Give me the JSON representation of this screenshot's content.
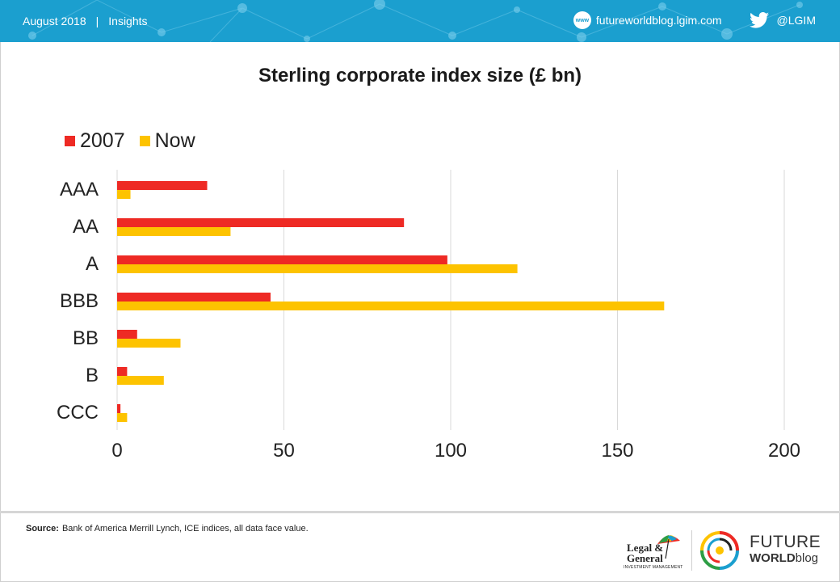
{
  "header": {
    "date": "August 2018",
    "separator": "|",
    "section": "Insights",
    "website": "futureworldblog.lgim.com",
    "www_icon_label": "www",
    "twitter_handle": "@LGIM",
    "icons": [
      "www-globe-icon",
      "twitter-bird-icon"
    ],
    "bar_color": "#1b9fcf"
  },
  "chart_data": {
    "type": "bar",
    "orientation": "horizontal",
    "title": "Sterling corporate index size (£ bn)",
    "categories": [
      "AAA",
      "AA",
      "A",
      "BBB",
      "BB",
      "B",
      "CCC"
    ],
    "series": [
      {
        "name": "2007",
        "color": "#ee2a24",
        "values": [
          27,
          86,
          99,
          46,
          6,
          3,
          1
        ]
      },
      {
        "name": "Now",
        "color": "#fdc300",
        "values": [
          4,
          34,
          120,
          164,
          19,
          14,
          3
        ]
      }
    ],
    "xlim": [
      0,
      200
    ],
    "xticks": [
      "0",
      "50",
      "100",
      "150",
      "200"
    ],
    "grid": true,
    "legend_position": "top-left"
  },
  "footer": {
    "source_label": "Source:",
    "source_text": "Bank of America Merrill Lynch, ICE indices, all data face value.",
    "lg_name_line1": "Legal &",
    "lg_name_line2": "General",
    "lg_tagline": "INVESTMENT MANAGEMENT",
    "fw_line1": "FUTURE",
    "fw_line2_bold": "WORLD",
    "fw_line2_light": "blog"
  }
}
